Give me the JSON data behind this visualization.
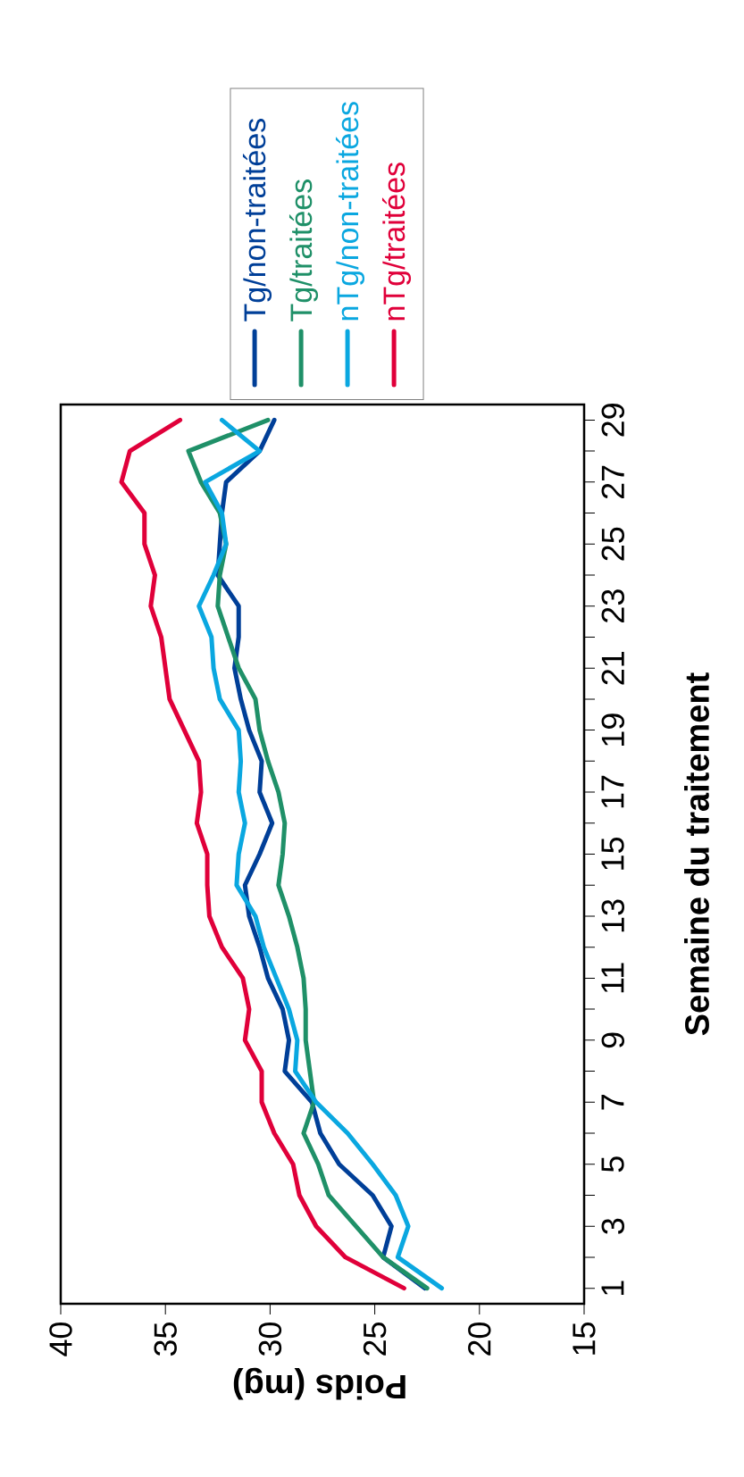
{
  "chart_data": {
    "type": "line",
    "xlabel": "Poids (mg)",
    "ylabel": "Semaine du traitement",
    "xlim": [
      40,
      15
    ],
    "xticks": [
      15,
      20,
      25,
      30,
      35,
      40
    ],
    "ylim": [
      0.5,
      29.5
    ],
    "yticks": [
      1,
      {
        "value": 2,
        "label": null
      },
      3,
      {
        "value": 4,
        "label": null
      },
      5,
      {
        "value": 6,
        "label": null
      },
      7,
      {
        "value": 8,
        "label": null
      },
      9,
      {
        "value": 10,
        "label": null
      },
      11,
      {
        "value": 12,
        "label": null
      },
      13,
      {
        "value": 14,
        "label": null
      },
      15,
      {
        "value": 16,
        "label": null
      },
      17,
      {
        "value": 18,
        "label": null
      },
      19,
      {
        "value": 20,
        "label": null
      },
      21,
      {
        "value": 22,
        "label": null
      },
      23,
      {
        "value": 24,
        "label": null
      },
      25,
      {
        "value": 26,
        "label": null
      },
      27,
      {
        "value": 28,
        "label": null
      },
      29
    ],
    "grid": false,
    "legend": "top",
    "marker": "none",
    "line_style": "solid",
    "series": [
      {
        "name": "Tg/non-traitées",
        "color": "#003f98",
        "x": [
          22.6,
          24.6,
          24.2,
          25.1,
          26.7,
          27.6,
          28.0,
          29.3,
          29.1,
          29.4,
          30.1,
          30.5,
          31.0,
          31.2,
          30.5,
          29.9,
          30.5,
          30.4,
          31.0,
          31.4,
          31.7,
          31.5,
          31.5,
          32.5,
          32.4,
          32.3,
          32.1,
          30.5,
          29.8
        ],
        "values": [
          1,
          2,
          3,
          4,
          5,
          6,
          7,
          8,
          9,
          10,
          11,
          12,
          13,
          14,
          15,
          16,
          17,
          18,
          19,
          20,
          21,
          22,
          23,
          24,
          25,
          26,
          27,
          28,
          29
        ]
      },
      {
        "name": "Tg/traitées",
        "color": "#1f9068",
        "x": [
          22.5,
          24.6,
          25.9,
          27.2,
          27.7,
          28.4,
          27.9,
          28.1,
          28.3,
          28.3,
          28.4,
          28.7,
          29.1,
          29.6,
          29.4,
          29.3,
          29.6,
          30.1,
          30.5,
          30.7,
          31.5,
          32.0,
          32.5,
          32.4,
          32.1,
          32.4,
          33.3,
          33.9,
          30.1
        ],
        "values": [
          1,
          2,
          3,
          4,
          5,
          6,
          7,
          8,
          9,
          10,
          11,
          12,
          13,
          14,
          15,
          16,
          17,
          18,
          19,
          20,
          21,
          22,
          23,
          24,
          25,
          26,
          27,
          28,
          29
        ]
      },
      {
        "name": "nTg/non-traitées",
        "color": "#0aa7e0",
        "x": [
          21.8,
          23.9,
          23.4,
          24.0,
          25.1,
          26.3,
          27.8,
          28.8,
          28.7,
          29.1,
          29.7,
          30.3,
          30.7,
          31.6,
          31.5,
          31.2,
          31.5,
          31.4,
          31.5,
          32.4,
          32.7,
          32.8,
          33.4,
          32.7,
          32.1,
          32.3,
          33.1,
          30.5,
          32.3
        ],
        "values": [
          1,
          2,
          3,
          4,
          5,
          6,
          7,
          8,
          9,
          10,
          11,
          12,
          13,
          14,
          15,
          16,
          17,
          18,
          19,
          20,
          21,
          22,
          23,
          24,
          25,
          26,
          27,
          28,
          29
        ]
      },
      {
        "name": "nTg/traitées",
        "color": "#e0003a",
        "x": [
          23.6,
          26.4,
          27.8,
          28.6,
          28.9,
          29.8,
          30.4,
          30.4,
          31.2,
          31.0,
          31.3,
          32.3,
          32.9,
          33.0,
          33.0,
          33.5,
          33.3,
          33.4,
          34.1,
          34.8,
          35.0,
          35.2,
          35.7,
          35.5,
          36.0,
          36.0,
          37.1,
          36.7,
          34.3
        ],
        "values": [
          1,
          2,
          3,
          4,
          5,
          6,
          7,
          8,
          9,
          10,
          11,
          12,
          13,
          14,
          15,
          16,
          17,
          18,
          19,
          20,
          21,
          22,
          23,
          24,
          25,
          26,
          27,
          28,
          29
        ]
      }
    ]
  }
}
